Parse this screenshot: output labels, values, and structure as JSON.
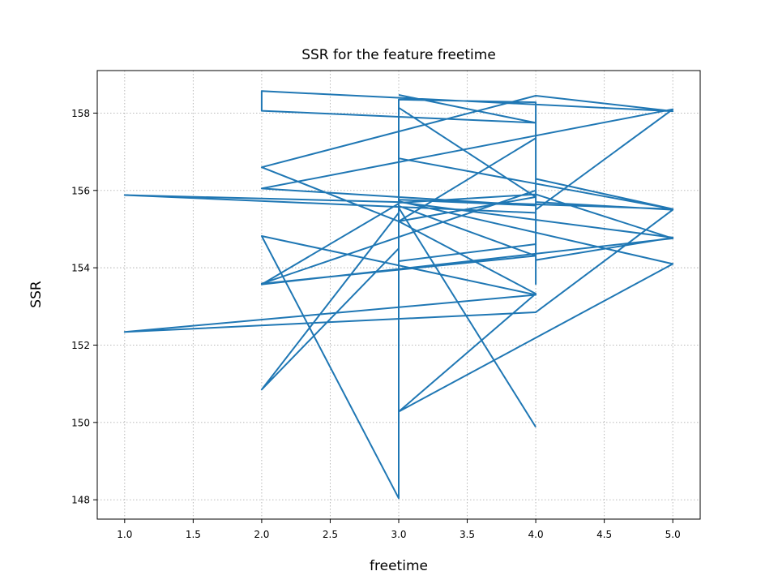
{
  "chart_data": {
    "type": "line",
    "title": "SSR for the feature freetime",
    "xlabel": "freetime",
    "ylabel": "SSR",
    "xlim": [
      0.8,
      5.2
    ],
    "ylim": [
      147.5,
      159.1
    ],
    "xticks": [
      "1.0",
      "1.5",
      "2.0",
      "2.5",
      "3.0",
      "3.5",
      "4.0",
      "4.5",
      "5.0"
    ],
    "yticks": [
      "148",
      "150",
      "152",
      "154",
      "156",
      "158"
    ],
    "grid": true,
    "line_color": "#1f77b4",
    "series": [
      {
        "x": [
          3,
          4,
          2,
          2,
          5,
          4,
          2,
          3,
          4,
          4,
          5,
          3,
          4,
          2,
          5,
          4,
          4,
          5,
          3,
          1,
          4,
          4,
          4,
          5,
          3,
          3,
          4,
          2,
          4,
          4,
          4,
          3,
          3,
          3,
          4,
          3,
          4,
          3,
          5,
          3,
          3,
          4,
          4,
          5,
          4,
          1,
          4,
          2,
          3,
          3,
          2,
          3,
          3,
          2,
          5,
          4,
          3,
          3,
          4
        ],
        "y": [
          158.47,
          157.75,
          158.06,
          158.57,
          158.05,
          158.45,
          156.6,
          155.2,
          157.35,
          156.3,
          155.52,
          155.76,
          155.61,
          156.05,
          158.1,
          155.5,
          154.2,
          154.78,
          155.7,
          155.88,
          155.42,
          155.64,
          156.3,
          155.52,
          156.83,
          155.6,
          154.31,
          153.59,
          156.0,
          153.58,
          154.61,
          154.17,
          155.6,
          158.14,
          155.83,
          155.2,
          153.33,
          150.28,
          154.1,
          155.72,
          158.35,
          158.28,
          155.7,
          155.5,
          152.85,
          152.34,
          153.3,
          154.82,
          148.04,
          155.42,
          150.85,
          154.5,
          155.66,
          153.57,
          154.76,
          155.9,
          155.68,
          155.55,
          149.88
        ]
      }
    ]
  }
}
